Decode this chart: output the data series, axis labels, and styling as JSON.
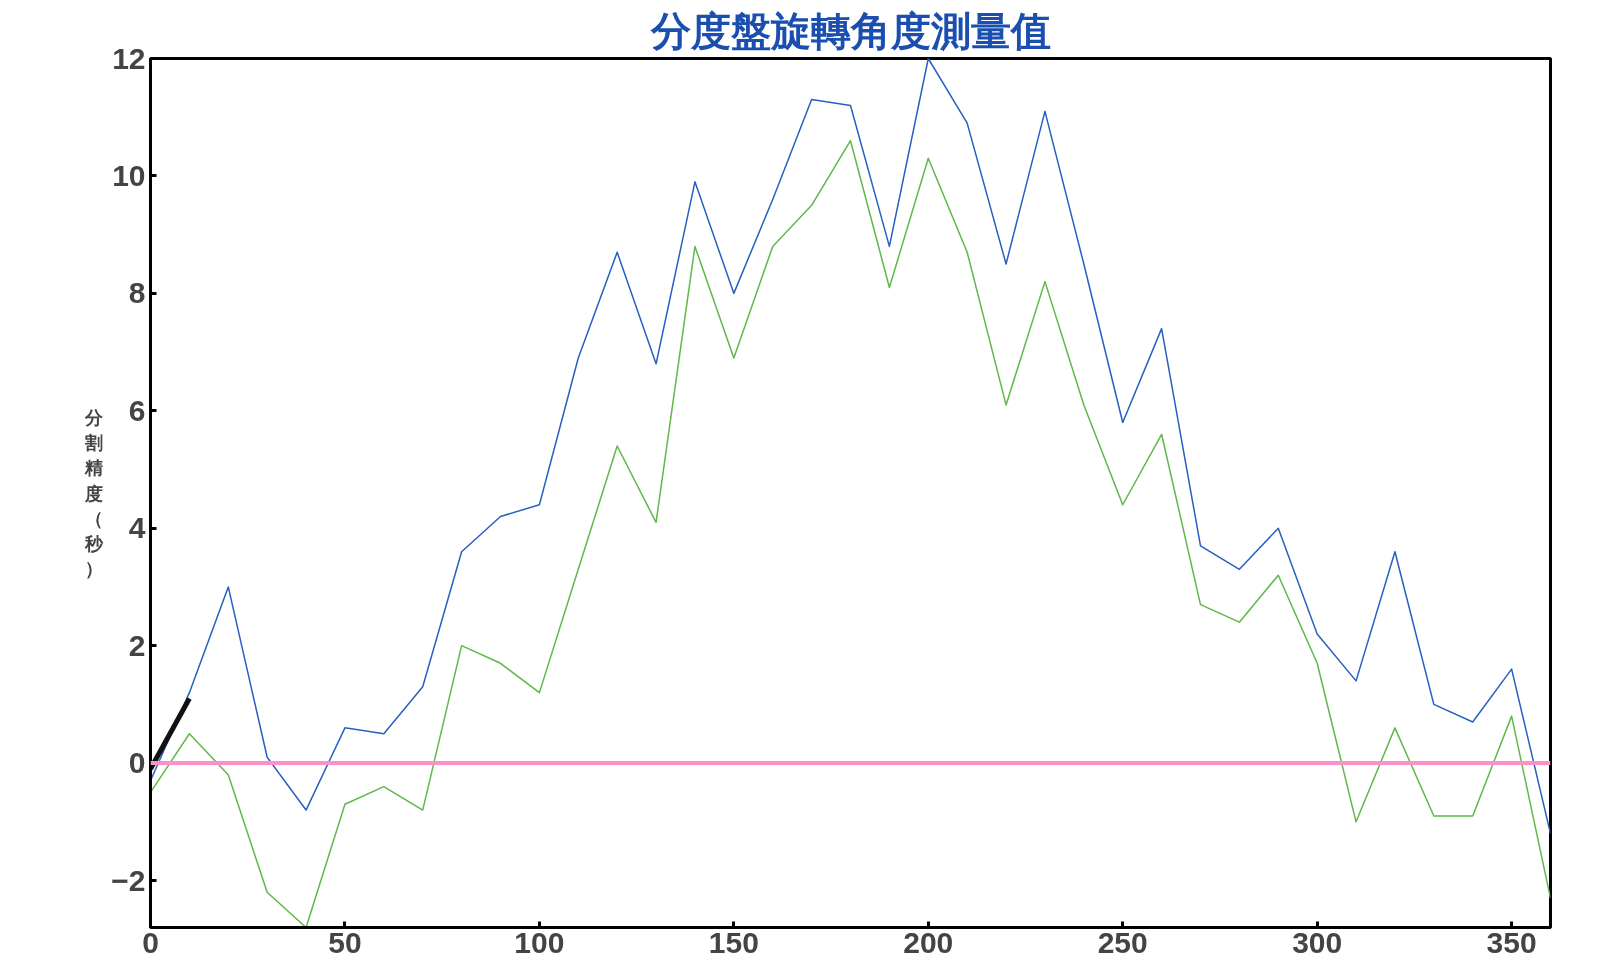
{
  "chart_data": {
    "type": "line",
    "title": "分度盤旋轉角度測量值",
    "ylabel": "分割精度（秒）",
    "x": [
      0,
      10,
      20,
      30,
      40,
      50,
      60,
      70,
      80,
      90,
      100,
      110,
      120,
      130,
      140,
      150,
      160,
      170,
      180,
      190,
      200,
      210,
      220,
      230,
      240,
      250,
      260,
      270,
      280,
      290,
      300,
      310,
      320,
      330,
      340,
      350,
      360
    ],
    "series": [
      {
        "color": "#2660c0",
        "values": [
          -0.3,
          1.2,
          3.0,
          0.1,
          -0.8,
          0.6,
          0.5,
          1.3,
          3.6,
          4.2,
          4.4,
          6.9,
          8.7,
          6.8,
          9.9,
          8.0,
          9.6,
          11.3,
          11.2,
          8.8,
          12.0,
          10.9,
          8.5,
          11.1,
          8.5,
          5.8,
          7.4,
          3.7,
          3.3,
          4.0,
          2.2,
          1.4,
          3.6,
          1.0,
          0.7,
          1.6,
          -1.2
        ]
      },
      {
        "color": "#5fb84a",
        "values": [
          -0.5,
          0.5,
          -0.2,
          -2.2,
          -2.8,
          -0.7,
          -0.4,
          -0.8,
          2.0,
          1.7,
          1.2,
          3.3,
          5.4,
          4.1,
          8.8,
          6.9,
          8.8,
          9.5,
          10.6,
          8.1,
          10.3,
          8.7,
          6.1,
          8.2,
          6.1,
          4.4,
          5.6,
          2.7,
          2.4,
          3.2,
          1.7,
          -1.0,
          0.6,
          -0.9,
          -0.9,
          0.8,
          -2.3
        ]
      },
      {
        "color": "#111111",
        "x": [
          0,
          10
        ],
        "values": [
          -0.1,
          1.1
        ]
      }
    ],
    "ref_lines": [
      {
        "axis": "y",
        "value": 0,
        "color": "#ff8fc8"
      }
    ],
    "xlim": [
      0,
      360
    ],
    "ylim": [
      -2.8,
      12
    ],
    "xticks": [
      0,
      50,
      100,
      150,
      200,
      250,
      300,
      350
    ],
    "yticks": [
      -2,
      0,
      2,
      4,
      6,
      8,
      10,
      12
    ],
    "grid": false,
    "marker": "none",
    "line_style": "solid"
  }
}
